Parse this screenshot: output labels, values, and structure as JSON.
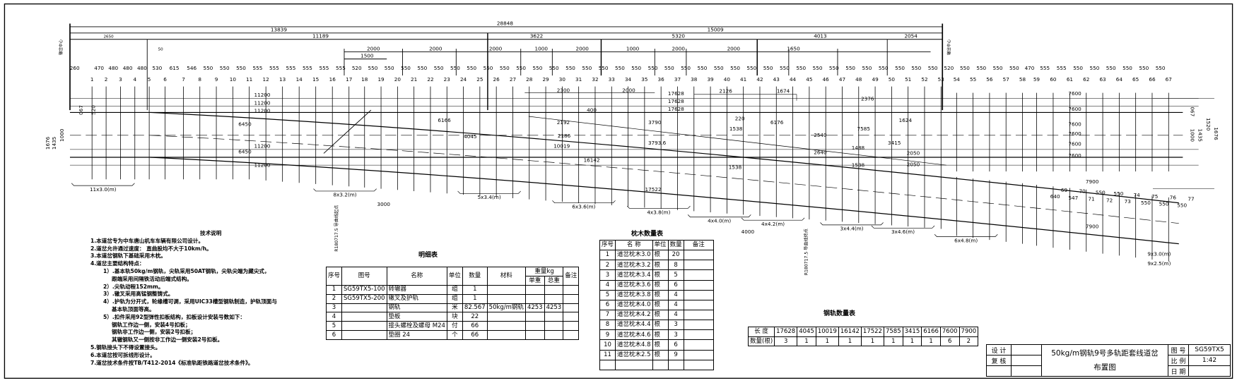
{
  "top_dimensions": {
    "total": "28848",
    "left_half": "13839",
    "right_half": "15009",
    "row3": [
      "2650",
      "11189",
      "3622",
      "5320",
      "4013",
      "2054"
    ],
    "row4": [
      "2000",
      "2000",
      "2000",
      "1000",
      "2000",
      "1000",
      "2000",
      "2000",
      "1650"
    ],
    "small": [
      "50",
      "1500"
    ],
    "switch_center_label": "辙岔中心"
  },
  "sleeper_spacings": [
    "260",
    "470",
    "480",
    "480",
    "480",
    "530",
    "615",
    "546",
    "550",
    "550",
    "550",
    "555",
    "555",
    "555",
    "555",
    "555",
    "555",
    "520",
    "550",
    "550",
    "550",
    "550",
    "550",
    "550",
    "550",
    "550",
    "550",
    "550",
    "550",
    "550",
    "550",
    "550",
    "550",
    "550",
    "550",
    "550",
    "550",
    "550",
    "550",
    "550",
    "550",
    "550",
    "550",
    "550",
    "550",
    "550",
    "550",
    "550",
    "550",
    "550",
    "550",
    "550",
    "550",
    "520",
    "550",
    "550",
    "550",
    "550",
    "470",
    "555",
    "555",
    "550",
    "550",
    "550",
    "550",
    "550",
    "550"
  ],
  "sleeper_count": 67,
  "annotations": {
    "a11200": "11200",
    "a6450": "6450",
    "a6166": "6166",
    "a4045": "4045",
    "a10019": "10019",
    "a16142": "16142",
    "a17522": "17522",
    "a17628": "17628",
    "a7600": "7600",
    "a7900": "7900",
    "a2300": "2300",
    "a2000": "2000",
    "a2126": "2126",
    "a1674": "1674",
    "a2376": "2376",
    "a1624": "1624",
    "a3790": "3790",
    "a3793": "3793.6",
    "a1538": "1538",
    "a2540": "2540",
    "a2640": "2640",
    "a7585": "7585",
    "a1488": "1488",
    "a3415": "3415",
    "a2050": "2050",
    "a2050b": "2050",
    "a400": "400",
    "a2192": "2192",
    "a2186": "2186",
    "a220": "220",
    "a6176": "6176",
    "a3000": "3000",
    "a4000": "4000",
    "a1676": "1676",
    "a1435": "1435",
    "a1000": "1000",
    "a520": "520",
    "a067": "067",
    "a1520": "1520",
    "right_sleepers": [
      "640",
      "69",
      "547",
      "70",
      "71",
      "550",
      "72",
      "550",
      "73",
      "74",
      "550",
      "75",
      "550",
      "76",
      "550",
      "77"
    ],
    "curve1": "R180717.5 导曲线起点",
    "curve2": "R180717.5 导曲线终点"
  },
  "sleeper_groups": [
    "11x3.0(m)",
    "8x3.2(m)",
    "5x3.4(m)",
    "6x3.6(m)",
    "4x3.8(m)",
    "4x4.0(m)",
    "4x4.2(m)",
    "3x4.4(m)",
    "3x4.6(m)",
    "6x4.8(m)",
    "9x3.0(m)",
    "9x2.5(m)"
  ],
  "tech_notes": {
    "title": "技术说明",
    "lines": [
      "1.本道岔专为中车唐山机车车辆有限公司设计。",
      "2.道岔允许通过速度：  直曲股均不大于10km/h。",
      "3.本道岔钢轨下基础采用木枕。",
      "4.道岔主要结构特点：",
      "1）.基本轨50kg/m钢轨，尖轨采用50AT钢轨，尖轨尖端为藏尖式，",
      "跟端采用间隔铁活动后端式结构。",
      "2）.尖轨动程152mm。",
      "3）.辙叉采用高锰钢整铸式。",
      "4）.护轨为分开式，轮缘槽可调，采用UIC33槽型钢轨制造，护轨顶面与",
      "基本轨顶面等高。",
      "5）.扣件采用92型弹性扣板结构，扣板设计安装号数如下：",
      "钢轨工作边一侧，安装4号扣板；",
      "钢轨非工作边一侧，安装2号扣板；",
      "其辙钢轨又一侧按非工作边一侧安装2号扣板。",
      "5.钢轨接头下不得设置接头。",
      "6.本道岔按可拆线形设计。",
      "7.道岔技术条件按TB/T412-2014《标准轨距铁路道岔技术条件》。"
    ]
  },
  "detail_table": {
    "title": "明细表",
    "headers": [
      "序号",
      "图号",
      "名称",
      "单位",
      "数量",
      "材料",
      "重量kg",
      "单重",
      "总重",
      "备注"
    ],
    "rows": [
      [
        "1",
        "SG59TX5-100",
        "转辙器",
        "组",
        "1",
        "",
        "",
        "",
        ""
      ],
      [
        "2",
        "SG59TX5-200",
        "辙叉及护轨",
        "组",
        "1",
        "",
        "",
        "",
        ""
      ],
      [
        "3",
        "",
        "钢轨",
        "米",
        "82.567",
        "50kg/m钢轨",
        "4253",
        "4253",
        ""
      ],
      [
        "4",
        "",
        "垫板",
        "块",
        "22",
        "",
        "",
        "",
        ""
      ],
      [
        "5",
        "",
        "接头螺栓及螺母 M24",
        "付",
        "66",
        "",
        "",
        "",
        ""
      ],
      [
        "6",
        "",
        "垫圈 24",
        "个",
        "66",
        "",
        "",
        "",
        ""
      ]
    ]
  },
  "sleeper_table": {
    "title": "枕木数量表",
    "headers": [
      "序号",
      "名 称",
      "单位",
      "数量",
      "备注"
    ],
    "rows": [
      [
        "1",
        "道岔枕木3.0",
        "根",
        "20",
        ""
      ],
      [
        "2",
        "道岔枕木3.2",
        "根",
        "8",
        ""
      ],
      [
        "3",
        "道岔枕木3.4",
        "根",
        "5",
        ""
      ],
      [
        "4",
        "道岔枕木3.6",
        "根",
        "6",
        ""
      ],
      [
        "5",
        "道岔枕木3.8",
        "根",
        "4",
        ""
      ],
      [
        "6",
        "道岔枕木4.0",
        "根",
        "4",
        ""
      ],
      [
        "7",
        "道岔枕木4.2",
        "根",
        "4",
        ""
      ],
      [
        "8",
        "道岔枕木4.4",
        "根",
        "3",
        ""
      ],
      [
        "9",
        "道岔枕木4.6",
        "根",
        "3",
        ""
      ],
      [
        "10",
        "道岔枕木4.8",
        "根",
        "6",
        ""
      ],
      [
        "11",
        "道岔枕木2.5",
        "根",
        "9",
        ""
      ]
    ]
  },
  "rail_table": {
    "title": "钢轨数量表",
    "row_labels": [
      "长 度",
      "数量(根)"
    ],
    "lengths": [
      "17628",
      "4045",
      "10019",
      "16142",
      "17522",
      "7585",
      "3415",
      "6166",
      "7600",
      "7900"
    ],
    "counts": [
      "3",
      "1",
      "1",
      "1",
      "1",
      "1",
      "1",
      "1",
      "6",
      "2"
    ]
  },
  "title_block": {
    "design_label": "设 计",
    "review_label": "复 核",
    "title_line1": "50kg/m钢轨9号多轨距套线道岔",
    "title_line2": "布置图",
    "drawing_no_label": "图 号",
    "drawing_no": "SG59TX5",
    "scale_label": "比 例",
    "scale": "1:42",
    "date_label": "日 期",
    "date": ""
  }
}
